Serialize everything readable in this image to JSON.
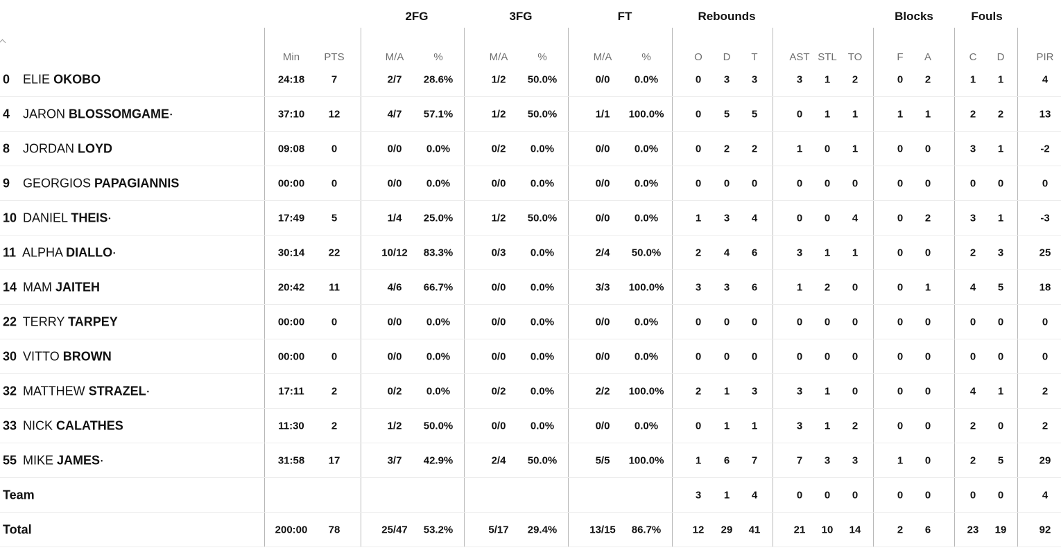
{
  "groups": [
    {
      "key": "2fg",
      "title": "2FG",
      "x": 601
    },
    {
      "key": "3fg",
      "title": "3FG",
      "x": 751
    },
    {
      "key": "ft",
      "title": "FT",
      "x": 901
    },
    {
      "key": "rebounds",
      "title": "Rebounds",
      "x": 1048
    },
    {
      "key": "blocks",
      "title": "Blocks",
      "x": 1318
    },
    {
      "key": "fouls",
      "title": "Fouls",
      "x": 1423
    }
  ],
  "columns": [
    "Min",
    "PTS",
    "M/A",
    "%",
    "M/A",
    "%",
    "M/A",
    "%",
    "O",
    "D",
    "T",
    "AST",
    "STL",
    "TO",
    "F",
    "A",
    "C",
    "D",
    "PIR"
  ],
  "players": [
    {
      "number": "0",
      "first": "ELIE",
      "last": "OKOBO",
      "starter": false,
      "stats": [
        "24:18",
        "7",
        "2/7",
        "28.6%",
        "1/2",
        "50.0%",
        "0/0",
        "0.0%",
        "0",
        "3",
        "3",
        "3",
        "1",
        "2",
        "0",
        "2",
        "1",
        "1",
        "4"
      ]
    },
    {
      "number": "4",
      "first": "JARON",
      "last": "BLOSSOMGAME",
      "starter": true,
      "stats": [
        "37:10",
        "12",
        "4/7",
        "57.1%",
        "1/2",
        "50.0%",
        "1/1",
        "100.0%",
        "0",
        "5",
        "5",
        "0",
        "1",
        "1",
        "1",
        "1",
        "2",
        "2",
        "13"
      ]
    },
    {
      "number": "8",
      "first": "JORDAN",
      "last": "LOYD",
      "starter": false,
      "stats": [
        "09:08",
        "0",
        "0/0",
        "0.0%",
        "0/2",
        "0.0%",
        "0/0",
        "0.0%",
        "0",
        "2",
        "2",
        "1",
        "0",
        "1",
        "0",
        "0",
        "3",
        "1",
        "-2"
      ]
    },
    {
      "number": "9",
      "first": "GEORGIOS",
      "last": "PAPAGIANNIS",
      "starter": false,
      "stats": [
        "00:00",
        "0",
        "0/0",
        "0.0%",
        "0/0",
        "0.0%",
        "0/0",
        "0.0%",
        "0",
        "0",
        "0",
        "0",
        "0",
        "0",
        "0",
        "0",
        "0",
        "0",
        "0"
      ]
    },
    {
      "number": "10",
      "first": "DANIEL",
      "last": "THEIS",
      "starter": true,
      "stats": [
        "17:49",
        "5",
        "1/4",
        "25.0%",
        "1/2",
        "50.0%",
        "0/0",
        "0.0%",
        "1",
        "3",
        "4",
        "0",
        "0",
        "4",
        "0",
        "2",
        "3",
        "1",
        "-3"
      ]
    },
    {
      "number": "11",
      "first": "ALPHA",
      "last": "DIALLO",
      "starter": true,
      "stats": [
        "30:14",
        "22",
        "10/12",
        "83.3%",
        "0/3",
        "0.0%",
        "2/4",
        "50.0%",
        "2",
        "4",
        "6",
        "3",
        "1",
        "1",
        "0",
        "0",
        "2",
        "3",
        "25"
      ]
    },
    {
      "number": "14",
      "first": "MAM",
      "last": "JAITEH",
      "starter": false,
      "stats": [
        "20:42",
        "11",
        "4/6",
        "66.7%",
        "0/0",
        "0.0%",
        "3/3",
        "100.0%",
        "3",
        "3",
        "6",
        "1",
        "2",
        "0",
        "0",
        "1",
        "4",
        "5",
        "18"
      ]
    },
    {
      "number": "22",
      "first": "TERRY",
      "last": "TARPEY",
      "starter": false,
      "stats": [
        "00:00",
        "0",
        "0/0",
        "0.0%",
        "0/0",
        "0.0%",
        "0/0",
        "0.0%",
        "0",
        "0",
        "0",
        "0",
        "0",
        "0",
        "0",
        "0",
        "0",
        "0",
        "0"
      ]
    },
    {
      "number": "30",
      "first": "VITTO",
      "last": "BROWN",
      "starter": false,
      "stats": [
        "00:00",
        "0",
        "0/0",
        "0.0%",
        "0/0",
        "0.0%",
        "0/0",
        "0.0%",
        "0",
        "0",
        "0",
        "0",
        "0",
        "0",
        "0",
        "0",
        "0",
        "0",
        "0"
      ]
    },
    {
      "number": "32",
      "first": "MATTHEW",
      "last": "STRAZEL",
      "starter": true,
      "stats": [
        "17:11",
        "2",
        "0/2",
        "0.0%",
        "0/2",
        "0.0%",
        "2/2",
        "100.0%",
        "2",
        "1",
        "3",
        "3",
        "1",
        "0",
        "0",
        "0",
        "4",
        "1",
        "2"
      ]
    },
    {
      "number": "33",
      "first": "NICK",
      "last": "CALATHES",
      "starter": false,
      "stats": [
        "11:30",
        "2",
        "1/2",
        "50.0%",
        "0/0",
        "0.0%",
        "0/0",
        "0.0%",
        "0",
        "1",
        "1",
        "3",
        "1",
        "2",
        "0",
        "0",
        "2",
        "0",
        "2"
      ]
    },
    {
      "number": "55",
      "first": "MIKE",
      "last": "JAMES",
      "starter": true,
      "stats": [
        "31:58",
        "17",
        "3/7",
        "42.9%",
        "2/4",
        "50.0%",
        "5/5",
        "100.0%",
        "1",
        "6",
        "7",
        "7",
        "3",
        "3",
        "1",
        "0",
        "2",
        "5",
        "29"
      ]
    }
  ],
  "team": {
    "label": "Team",
    "stats": [
      "",
      "",
      "",
      "",
      "",
      "",
      "",
      "",
      "3",
      "1",
      "4",
      "0",
      "0",
      "0",
      "0",
      "0",
      "0",
      "0",
      "4"
    ]
  },
  "total": {
    "label": "Total",
    "stats": [
      "200:00",
      "78",
      "25/47",
      "53.2%",
      "5/17",
      "29.4%",
      "13/15",
      "86.7%",
      "12",
      "29",
      "41",
      "21",
      "10",
      "14",
      "2",
      "6",
      "23",
      "19",
      "92"
    ]
  },
  "starter_mark": "•"
}
